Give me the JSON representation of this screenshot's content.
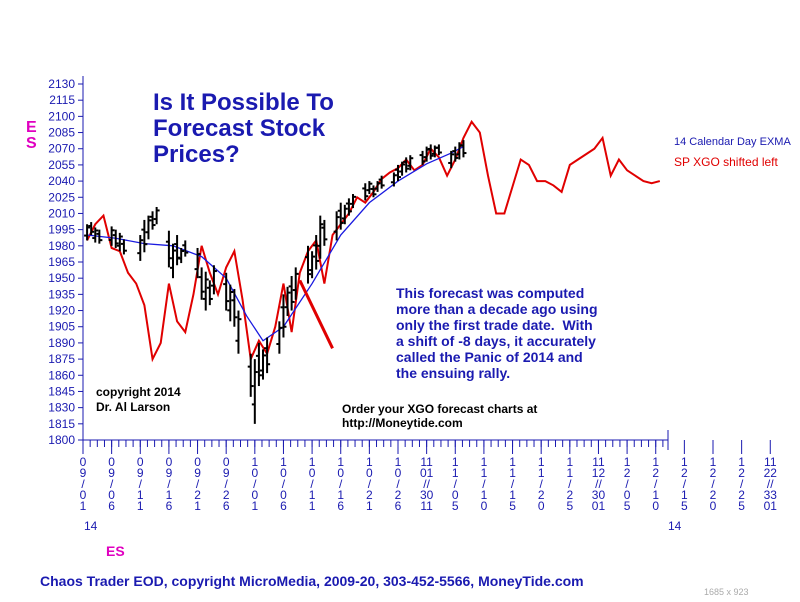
{
  "chart_data": {
    "type": "candlestick+line",
    "title": "Is It Possible To\nForecast Stock\nPrices?",
    "ylabel": "ES",
    "xlabel": "ES",
    "ylim": [
      1800,
      2130
    ],
    "y_ticks": [
      1800,
      1815,
      1830,
      1845,
      1860,
      1875,
      1890,
      1905,
      1920,
      1935,
      1950,
      1965,
      1980,
      1995,
      2010,
      2025,
      2040,
      2055,
      2070,
      2085,
      2100,
      2115,
      2130
    ],
    "x_tick_labels": [
      "09/01",
      "09/06",
      "09/11",
      "09/16",
      "09/21",
      "09/26",
      "10/01",
      "10/06",
      "10/11",
      "10/16",
      "10/21",
      "10/26",
      "10/31",
      "11/05",
      "11/10",
      "11/15",
      "11/20",
      "11/25",
      "11/30",
      "12/05",
      "12/10",
      "12/15",
      "12/20",
      "12/25",
      "12/30"
    ],
    "x_tick_displays": [
      "0\n9\n/\n0\n1",
      "0\n9\n/\n0\n6",
      "0\n9\n/\n1\n1",
      "0\n9\n/\n1\n6",
      "0\n9\n/\n2\n1",
      "0\n9\n/\n2\n6",
      "1\n0\n/\n0\n1",
      "1\n0\n/\n0\n6",
      "1\n0\n/\n1\n1",
      "1\n0\n/\n1\n6",
      "1\n0\n/\n2\n1",
      "1\n0\n/\n2\n6",
      "11\n01\n//\n30\n11",
      "1\n1\n/\n0\n5",
      "1\n1\n/\n1\n0",
      "1\n1\n/\n1\n5",
      "1\n1\n/\n2\n0",
      "1\n1\n/\n2\n5",
      "11\n12\n//\n30\n01",
      "1\n2\n/\n0\n5",
      "1\n2\n/\n1\n0",
      "1\n2\n/\n1\n5",
      "1\n2\n/\n2\n0",
      "1\n2\n/\n2\n5",
      "11\n22\n//\n33\n01"
    ],
    "year_labels": [
      "14",
      "14"
    ],
    "series": [
      {
        "name": "ES",
        "type": "ohlc",
        "color": "#000000",
        "bars": [
          {
            "x": 1,
            "h": 2000,
            "l": 1985
          },
          {
            "x": 2,
            "h": 2002,
            "l": 1990
          },
          {
            "x": 3,
            "h": 1997,
            "l": 1983
          },
          {
            "x": 4,
            "h": 1995,
            "l": 1982
          },
          {
            "x": 7,
            "h": 1998,
            "l": 1980
          },
          {
            "x": 8,
            "h": 1995,
            "l": 1978
          },
          {
            "x": 9,
            "h": 1992,
            "l": 1975
          },
          {
            "x": 10,
            "h": 1986,
            "l": 1972
          },
          {
            "x": 14,
            "h": 1990,
            "l": 1966
          },
          {
            "x": 15,
            "h": 2004,
            "l": 1974
          },
          {
            "x": 16,
            "h": 2008,
            "l": 1986
          },
          {
            "x": 17,
            "h": 2012,
            "l": 1995
          },
          {
            "x": 18,
            "h": 2016,
            "l": 2000
          },
          {
            "x": 21,
            "h": 1994,
            "l": 1960
          },
          {
            "x": 22,
            "h": 1982,
            "l": 1950
          },
          {
            "x": 23,
            "h": 1990,
            "l": 1962
          },
          {
            "x": 24,
            "h": 1978,
            "l": 1964
          },
          {
            "x": 25,
            "h": 1985,
            "l": 1970
          },
          {
            "x": 28,
            "h": 1978,
            "l": 1950
          },
          {
            "x": 29,
            "h": 1960,
            "l": 1930
          },
          {
            "x": 30,
            "h": 1956,
            "l": 1920
          },
          {
            "x": 31,
            "h": 1948,
            "l": 1925
          },
          {
            "x": 32,
            "h": 1962,
            "l": 1935
          },
          {
            "x": 35,
            "h": 1955,
            "l": 1920
          },
          {
            "x": 36,
            "h": 1944,
            "l": 1910
          },
          {
            "x": 37,
            "h": 1940,
            "l": 1905
          },
          {
            "x": 38,
            "h": 1920,
            "l": 1880
          },
          {
            "x": 41,
            "h": 1880,
            "l": 1840
          },
          {
            "x": 42,
            "h": 1875,
            "l": 1815
          },
          {
            "x": 43,
            "h": 1890,
            "l": 1850
          },
          {
            "x": 44,
            "h": 1884,
            "l": 1856
          },
          {
            "x": 45,
            "h": 1895,
            "l": 1862
          },
          {
            "x": 48,
            "h": 1910,
            "l": 1880
          },
          {
            "x": 49,
            "h": 1935,
            "l": 1895
          },
          {
            "x": 50,
            "h": 1942,
            "l": 1915
          },
          {
            "x": 51,
            "h": 1952,
            "l": 1920
          },
          {
            "x": 52,
            "h": 1960,
            "l": 1930
          },
          {
            "x": 55,
            "h": 1980,
            "l": 1945
          },
          {
            "x": 56,
            "h": 1975,
            "l": 1950
          },
          {
            "x": 57,
            "h": 1990,
            "l": 1958
          },
          {
            "x": 58,
            "h": 2008,
            "l": 1968
          },
          {
            "x": 59,
            "h": 2004,
            "l": 1980
          },
          {
            "x": 62,
            "h": 2012,
            "l": 1985
          },
          {
            "x": 63,
            "h": 2020,
            "l": 1995
          },
          {
            "x": 64,
            "h": 2018,
            "l": 2000
          },
          {
            "x": 65,
            "h": 2024,
            "l": 2008
          },
          {
            "x": 66,
            "h": 2028,
            "l": 2015
          },
          {
            "x": 69,
            "h": 2038,
            "l": 2022
          },
          {
            "x": 70,
            "h": 2040,
            "l": 2028
          },
          {
            "x": 71,
            "h": 2036,
            "l": 2025
          },
          {
            "x": 72,
            "h": 2040,
            "l": 2030
          },
          {
            "x": 73,
            "h": 2045,
            "l": 2033
          },
          {
            "x": 76,
            "h": 2048,
            "l": 2035
          },
          {
            "x": 77,
            "h": 2055,
            "l": 2040
          },
          {
            "x": 78,
            "h": 2058,
            "l": 2045
          },
          {
            "x": 79,
            "h": 2062,
            "l": 2048
          },
          {
            "x": 80,
            "h": 2064,
            "l": 2050
          },
          {
            "x": 83,
            "h": 2068,
            "l": 2055
          },
          {
            "x": 84,
            "h": 2072,
            "l": 2058
          },
          {
            "x": 85,
            "h": 2074,
            "l": 2060
          },
          {
            "x": 86,
            "h": 2073,
            "l": 2062
          },
          {
            "x": 87,
            "h": 2074,
            "l": 2064
          },
          {
            "x": 90,
            "h": 2068,
            "l": 2052
          },
          {
            "x": 91,
            "h": 2072,
            "l": 2058
          },
          {
            "x": 92,
            "h": 2076,
            "l": 2060
          },
          {
            "x": 93,
            "h": 2078,
            "l": 2062
          }
        ]
      },
      {
        "name": "14 Calendar Day EXMA",
        "type": "line",
        "color": "#1a1ae0",
        "x": [
          1,
          8,
          15,
          22,
          29,
          35,
          40,
          44,
          49,
          56,
          63,
          70,
          77,
          84,
          90,
          93
        ],
        "y": [
          1990,
          1987,
          1982,
          1980,
          1970,
          1950,
          1915,
          1892,
          1905,
          1945,
          1990,
          2020,
          2040,
          2056,
          2066,
          2072
        ]
      },
      {
        "name": "SP XGO shifted left",
        "type": "line",
        "color": "#e00000",
        "x": [
          1,
          3,
          5,
          7,
          9,
          11,
          13,
          15,
          17,
          19,
          21,
          23,
          25,
          27,
          29,
          31,
          33,
          35,
          37,
          39,
          41,
          43,
          45,
          47,
          49,
          51,
          53,
          55,
          57,
          59,
          61,
          63,
          65,
          67,
          69,
          71,
          73,
          75,
          77,
          79,
          81,
          83,
          85,
          87,
          89,
          91,
          93,
          95,
          97,
          99,
          101,
          103,
          105,
          107,
          109,
          111,
          113,
          115,
          117,
          119,
          121,
          123,
          125,
          127,
          129,
          131,
          133,
          135,
          137,
          139,
          141
        ],
        "y": [
          1985,
          2000,
          2008,
          1978,
          1975,
          1955,
          1945,
          1925,
          1875,
          1890,
          1945,
          1910,
          1900,
          1935,
          1980,
          1955,
          1935,
          1960,
          1975,
          1930,
          1875,
          1892,
          1880,
          1905,
          1945,
          1900,
          1955,
          1975,
          1985,
          1945,
          1990,
          2000,
          2010,
          2025,
          2020,
          2030,
          2042,
          2048,
          2052,
          2060,
          2050,
          2055,
          2070,
          2062,
          2045,
          2060,
          2080,
          2095,
          2085,
          2045,
          2010,
          2010,
          2035,
          2060,
          2055,
          2040,
          2040,
          2036,
          2030,
          2055,
          2060,
          2065,
          2070,
          2080,
          2045,
          2060,
          2050,
          2045,
          2040,
          2038,
          2040
        ]
      }
    ]
  },
  "title": "Is It Possible To\nForecast Stock\nPrices?",
  "y_axis_symbol": "E\nS",
  "x_axis_symbol": "ES",
  "legend": {
    "ma_label": "14 Calendar Day EXMA",
    "xgo_label": "SP XGO shifted left"
  },
  "annotation": "This forecast was computed\nmore than a decade ago using\nonly the first trade date.  With\na shift of -8 days, it accurately\ncalled the Panic of 2014 and\nthe ensuing rally.",
  "copyright": "copyright 2014\nDr. Al Larson",
  "order_text": "Order your XGO forecast charts at\nhttp://Moneytide.com",
  "footer": "Chaos Trader EOD, copyright MicroMedia, 2009-20, 303-452-5566, MoneyTide.com",
  "image_size": "1685 x 923",
  "colors": {
    "price_bars": "#000000",
    "ma_line": "#1a1ae0",
    "xgo_line": "#e00000",
    "axis": "#1a1ab0",
    "title": "#1a1ab0",
    "accent": "#e000c0"
  }
}
